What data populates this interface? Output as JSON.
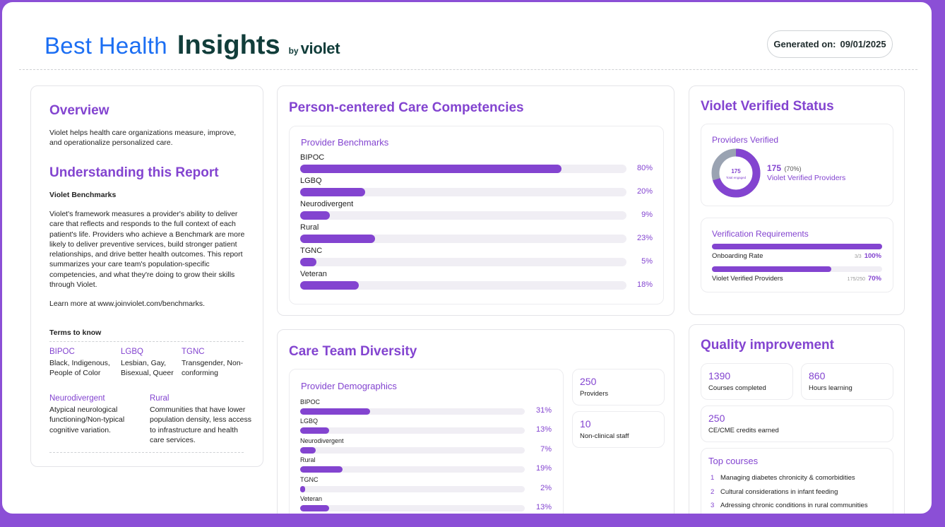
{
  "header": {
    "brand_part1": "Best Health",
    "brand_part2": "Insights",
    "brand_by": "by",
    "brand_logo": "violet",
    "generated_label": "Generated on:",
    "generated_date": "09/01/2025"
  },
  "overview": {
    "title": "Overview",
    "intro": "Violet helps health care organizations measure, improve, and operationalize personalized care.",
    "understanding_title": "Understanding this Report",
    "benchmarks_title": "Violet Benchmarks",
    "benchmarks_text": "Violet's framework measures a provider's ability to deliver care that reflects and responds to the full context of each patient's life. Providers who achieve a Benchmark are more likely to deliver preventive services, build stronger patient relationships, and drive better health outcomes. This report summarizes your care team's population-specific competencies, and what they're doing to grow their skills through Violet.",
    "learn_more": "Learn more at www.joinviolet.com/benchmarks.",
    "terms_title": "Terms to know",
    "terms": [
      {
        "term": "BIPOC",
        "definition": "Black, Indigenous, People of Color"
      },
      {
        "term": "LGBQ",
        "definition": "Lesbian, Gay, Bisexual, Queer"
      },
      {
        "term": "TGNC",
        "definition": "Transgender, Non-conforming"
      },
      {
        "term": "Neurodivergent",
        "definition": "Atypical neurological functioning/Non-typical cognitive variation."
      },
      {
        "term": "Rural",
        "definition": "Communities that have lower population density, less access to infrastructure and health care services."
      }
    ]
  },
  "competencies": {
    "title": "Person-centered Care Competencies",
    "subtitle": "Provider Benchmarks",
    "rows": [
      {
        "label": "BIPOC",
        "value": 80,
        "pct": "80%"
      },
      {
        "label": "LGBQ",
        "value": 20,
        "pct": "20%"
      },
      {
        "label": "Neurodivergent",
        "value": 9,
        "pct": "9%"
      },
      {
        "label": "Rural",
        "value": 23,
        "pct": "23%"
      },
      {
        "label": "TGNC",
        "value": 5,
        "pct": "5%"
      },
      {
        "label": "Veteran",
        "value": 18,
        "pct": "18%"
      }
    ]
  },
  "diversity": {
    "title": "Care Team Diversity",
    "subtitle": "Provider Demographics",
    "rows": [
      {
        "label": "BIPOC",
        "value": 31,
        "pct": "31%"
      },
      {
        "label": "LGBQ",
        "value": 13,
        "pct": "13%"
      },
      {
        "label": "Neurodivergent",
        "value": 7,
        "pct": "7%"
      },
      {
        "label": "Rural",
        "value": 19,
        "pct": "19%"
      },
      {
        "label": "TGNC",
        "value": 2,
        "pct": "2%"
      },
      {
        "label": "Veteran",
        "value": 13,
        "pct": "13%"
      }
    ],
    "stats": [
      {
        "value": "250",
        "label": "Providers"
      },
      {
        "value": "10",
        "label": "Non-clinical staff"
      }
    ]
  },
  "verified": {
    "title": "Violet Verified Status",
    "providers_title": "Providers Verified",
    "donut_center_value": "175",
    "donut_center_label": "Total engaged",
    "donut_fraction": 0.7,
    "count": "175",
    "count_pct": "(70%)",
    "count_label": "Violet Verified Providers",
    "requirements_title": "Verification Requirements",
    "requirements": [
      {
        "label": "Onboarding Rate",
        "ratio": "3/3",
        "pct": "100%",
        "value": 100
      },
      {
        "label": "Violet Verified Providers",
        "ratio": "175/250",
        "pct": "70%",
        "value": 70
      }
    ]
  },
  "quality": {
    "title": "Quality improvement",
    "stats": [
      {
        "value": "1390",
        "label": "Courses completed"
      },
      {
        "value": "860",
        "label": "Hours learning"
      },
      {
        "value": "250",
        "label": "CE/CME credits earned"
      }
    ],
    "top_courses_title": "Top courses",
    "courses": [
      {
        "num": "1",
        "name": "Managing diabetes chronicity & comorbidities"
      },
      {
        "num": "2",
        "name": "Cultural considerations in infant feeding"
      },
      {
        "num": "3",
        "name": "Adressing chronic conditions in rural communities"
      }
    ]
  },
  "colors": {
    "accent": "#8344d0",
    "frame": "#8b4fd6",
    "brand_blue": "#1b6ef3",
    "brand_dark": "#113d3a",
    "donut_rest": "#9aa3b2"
  }
}
